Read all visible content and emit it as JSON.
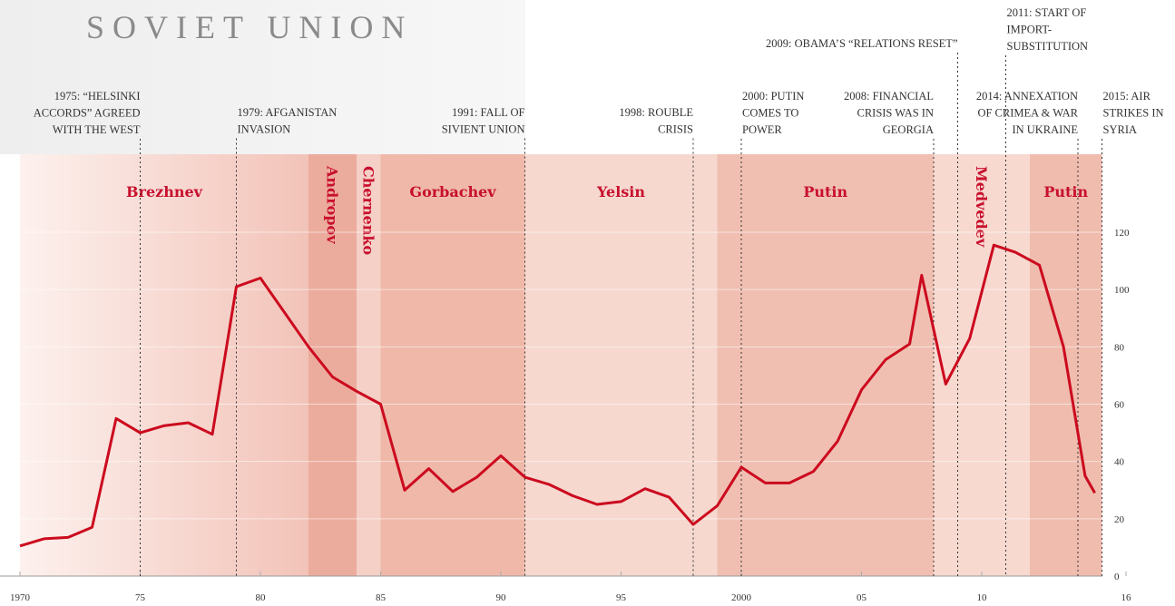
{
  "chart_data": {
    "type": "line",
    "title": "SOVIET UNION",
    "x": [
      1970,
      1971,
      1972,
      1973,
      1974,
      1975,
      1976,
      1977,
      1978,
      1979,
      1980,
      1981,
      1982,
      1983,
      1984,
      1985,
      1986,
      1987,
      1988,
      1989,
      1990,
      1991,
      1992,
      1993,
      1994,
      1995,
      1996,
      1997,
      1998,
      1999,
      2000,
      2001,
      2002,
      2003,
      2004,
      2005,
      2006,
      2007,
      2007.5,
      2008.5,
      2009.5,
      2010.5,
      2011.4,
      2012.4,
      2013.4,
      2014.3,
      2014.7
    ],
    "series": [
      {
        "color": "#cc0a1e",
        "values": [
          10.5,
          13,
          13.5,
          17,
          55,
          50,
          52.5,
          53.5,
          49.5,
          101,
          104,
          92,
          80,
          69.5,
          64.5,
          60,
          30,
          37.5,
          29.5,
          34.5,
          42,
          34.5,
          32,
          28,
          25,
          26,
          30.5,
          27.5,
          18,
          24.5,
          38,
          32.5,
          32.5,
          36.5,
          47,
          65,
          75.5,
          81,
          105,
          67,
          83,
          115.5,
          113,
          108.5,
          80,
          35,
          29
        ]
      }
    ],
    "xlim": [
      1970,
      2016
    ],
    "ylim": [
      0,
      120
    ],
    "xticks": [
      1970,
      {
        "value": 1975,
        "label": "75"
      },
      {
        "value": 1980,
        "label": "80"
      },
      {
        "value": 1985,
        "label": "85"
      },
      {
        "value": 1990,
        "label": "90"
      },
      {
        "value": 1995,
        "label": "95"
      },
      2000,
      {
        "value": 2005,
        "label": "05"
      },
      {
        "value": 2010,
        "label": "10"
      },
      {
        "value": 2016,
        "label": "16"
      }
    ],
    "yticks": [
      0,
      20,
      40,
      60,
      80,
      100,
      120
    ],
    "grid": true,
    "periods": [
      {
        "name": "Brezhnev",
        "start": 1970,
        "end": 1982
      },
      {
        "name": "Andropov",
        "start": 1982,
        "end": 1984
      },
      {
        "name": "Chernenko",
        "start": 1984,
        "end": 1985
      },
      {
        "name": "Gorbachev",
        "start": 1985,
        "end": 1991
      },
      {
        "name": "Yelsin",
        "start": 1991,
        "end": 1999
      },
      {
        "name": "Putin",
        "start": 1999,
        "end": 2008
      },
      {
        "name": "Medvedev",
        "start": 2008,
        "end": 2012
      },
      {
        "name": "Putin",
        "start": 2012,
        "end": 2015
      }
    ],
    "annotations": [
      {
        "year": 1975,
        "lines": [
          "1975: “HELSINKI",
          "ACCORDS” AGREED",
          "WITH THE WEST"
        ]
      },
      {
        "year": 1979,
        "lines": [
          "1979: AFGANISTAN",
          "INVASION"
        ]
      },
      {
        "year": 1991,
        "lines": [
          "1991: FALL OF",
          "SIVIENT UNION"
        ]
      },
      {
        "year": 1998,
        "lines": [
          "1998: ROUBLE",
          "CRISIS"
        ]
      },
      {
        "year": 2000,
        "lines": [
          "2000: PUTIN",
          "COMES TO",
          "POWER"
        ]
      },
      {
        "year": 2008,
        "lines": [
          "2008: FINANCIAL",
          "CRISIS WAS IN",
          "GEORGIA"
        ]
      },
      {
        "year": 2009,
        "lines": [
          "2009: OBAMA’S “RELATIONS RESET”"
        ]
      },
      {
        "year": 2011,
        "lines": [
          "2011: START OF",
          "IMPORT-",
          "SUBSTITUTION"
        ]
      },
      {
        "year": 2014,
        "lines": [
          "2014: ANNEXATION",
          "OF CRIMEA & WAR",
          "IN UKRAINE"
        ]
      },
      {
        "year": 2015,
        "lines": [
          "2015: AIR",
          "STRIKES IN",
          "SYRIA"
        ]
      }
    ]
  }
}
